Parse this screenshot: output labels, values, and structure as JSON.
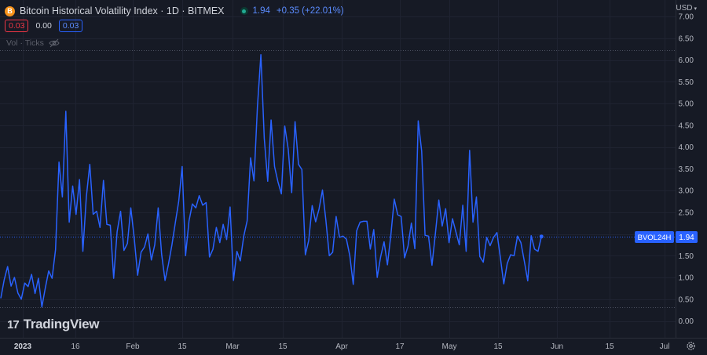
{
  "header": {
    "symbol_icon_letter": "B",
    "title": "Bitcoin Historical Volatility Index · 1D · BITMEX",
    "last_value": "1.94",
    "change": "+0.35 (+22.01%)",
    "sub_values": [
      "0.03",
      "0.00",
      "0.03"
    ],
    "indicator": "Vol · Ticks",
    "currency": "USD",
    "currency_caret": "▾"
  },
  "watermark": {
    "logo": "17",
    "text": "TradingView"
  },
  "colors": {
    "line": "#2962ff",
    "background": "#161a25",
    "grid": "#1f2331",
    "axis_text": "#b2b5be",
    "badge": "#2962ff"
  },
  "chart_data": {
    "type": "line",
    "series": [
      {
        "name": "BVOL24H",
        "last": "1.94",
        "values": [
          0.52,
          0.95,
          1.25,
          0.8,
          1.0,
          0.64,
          0.5,
          0.87,
          0.79,
          1.07,
          0.63,
          0.98,
          0.32,
          0.75,
          1.15,
          0.98,
          1.64,
          3.65,
          2.85,
          4.82,
          2.27,
          3.1,
          2.45,
          3.25,
          1.6,
          2.85,
          3.6,
          2.45,
          2.52,
          2.15,
          3.23,
          2.22,
          2.2,
          0.98,
          2.05,
          2.52,
          1.62,
          1.78,
          2.6,
          1.9,
          1.05,
          1.58,
          1.7,
          2.0,
          1.4,
          1.75,
          2.6,
          1.54,
          0.93,
          1.3,
          1.74,
          2.26,
          2.75,
          3.55,
          1.5,
          2.3,
          2.69,
          2.6,
          2.88,
          2.66,
          2.72,
          1.47,
          1.65,
          2.15,
          1.8,
          2.22,
          1.87,
          2.62,
          0.93,
          1.6,
          1.38,
          1.95,
          2.3,
          3.75,
          3.22,
          4.92,
          6.12,
          4.2,
          3.21,
          4.62,
          3.55,
          3.2,
          2.92,
          4.48,
          3.95,
          2.95,
          4.58,
          3.6,
          3.48,
          1.52,
          1.85,
          2.65,
          2.28,
          2.57,
          3.01,
          2.32,
          1.5,
          1.58,
          2.4,
          1.92,
          1.95,
          1.88,
          1.5,
          0.84,
          2.07,
          2.27,
          2.29,
          2.29,
          1.65,
          2.1,
          1.0,
          1.47,
          1.82,
          1.29,
          1.98,
          2.8,
          2.44,
          2.4,
          1.45,
          1.72,
          2.25,
          1.66,
          4.6,
          3.9,
          1.97,
          1.95,
          1.28,
          2.0,
          2.78,
          2.18,
          2.58,
          1.8,
          2.35,
          2.05,
          1.75,
          2.66,
          1.6,
          3.92,
          2.27,
          2.85,
          1.48,
          1.35,
          1.92,
          1.73,
          1.92,
          2.03,
          1.45,
          0.85,
          1.32,
          1.52,
          1.5,
          1.95,
          1.8,
          1.37,
          0.92,
          1.96,
          1.65,
          1.6,
          1.94
        ]
      }
    ],
    "x_ticks": [
      "2023",
      "16",
      "Feb",
      "15",
      "Mar",
      "15",
      "Apr",
      "17",
      "May",
      "15",
      "Jun",
      "15",
      "Jul"
    ],
    "y_ticks": [
      "0.00",
      "0.50",
      "1.00",
      "1.50",
      "2.00",
      "2.50",
      "3.00",
      "3.50",
      "4.00",
      "4.50",
      "5.00",
      "5.50",
      "6.00",
      "6.50",
      "7.00"
    ],
    "ylim": [
      0,
      7
    ],
    "grid": true
  }
}
